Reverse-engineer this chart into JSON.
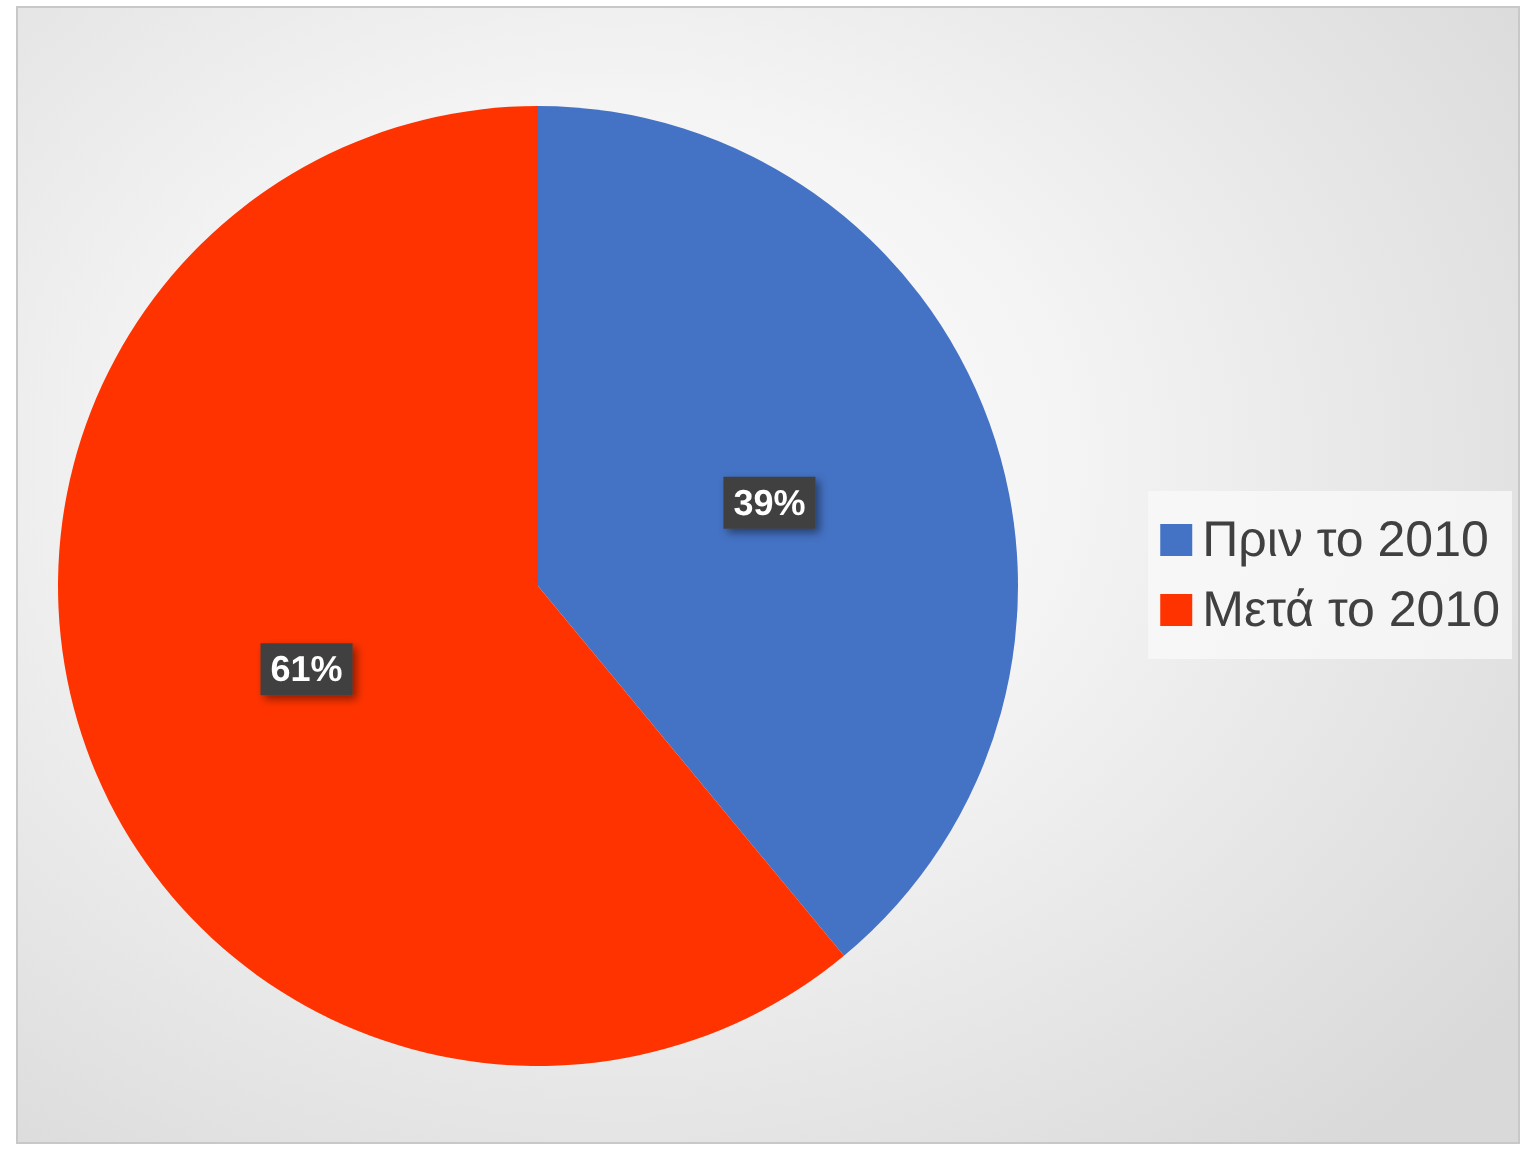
{
  "chart_data": {
    "type": "pie",
    "categories": [
      "Πριν το 2010",
      "Μετά το 2010"
    ],
    "values": [
      39,
      61
    ],
    "colors": [
      "#4472c4",
      "#ff3300"
    ],
    "value_labels": [
      "39%",
      "61%"
    ],
    "legend": "right"
  }
}
